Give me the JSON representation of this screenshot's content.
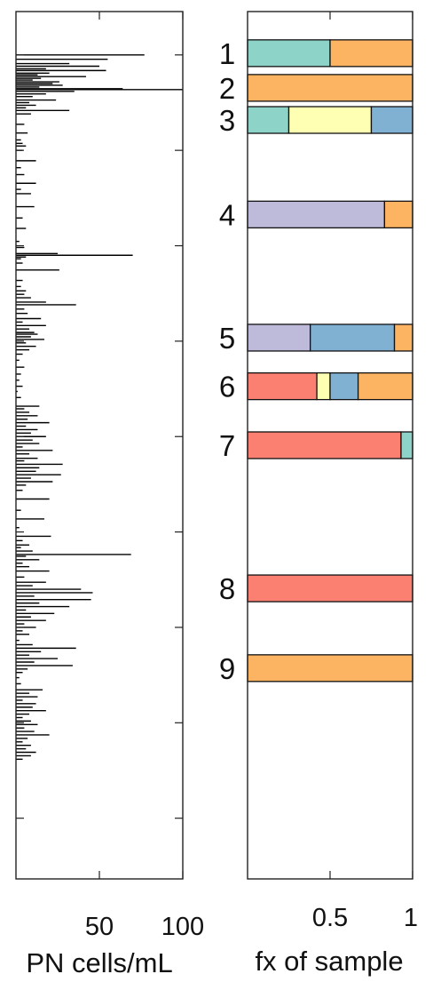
{
  "chart_data": [
    {
      "type": "bar",
      "orientation": "horizontal",
      "xlabel": "PN cells/mL",
      "x_ticks": [
        50,
        100
      ],
      "xlim": [
        0,
        100
      ],
      "ylim": [
        0,
        1
      ],
      "y_ticks": [
        0.05,
        0.16,
        0.27,
        0.38,
        0.49,
        0.6,
        0.71,
        0.82,
        0.93
      ],
      "grid": false,
      "bars": [
        {
          "pos": 0.05,
          "value": 77
        },
        {
          "pos": 0.055,
          "value": 55
        },
        {
          "pos": 0.06,
          "value": 32
        },
        {
          "pos": 0.063,
          "value": 50
        },
        {
          "pos": 0.066,
          "value": 18
        },
        {
          "pos": 0.068,
          "value": 54
        },
        {
          "pos": 0.071,
          "value": 20
        },
        {
          "pos": 0.073,
          "value": 13
        },
        {
          "pos": 0.075,
          "value": 42
        },
        {
          "pos": 0.077,
          "value": 15
        },
        {
          "pos": 0.079,
          "value": 10
        },
        {
          "pos": 0.081,
          "value": 26
        },
        {
          "pos": 0.083,
          "value": 22
        },
        {
          "pos": 0.085,
          "value": 28
        },
        {
          "pos": 0.087,
          "value": 14
        },
        {
          "pos": 0.089,
          "value": 64
        },
        {
          "pos": 0.09,
          "value": 100
        },
        {
          "pos": 0.092,
          "value": 35
        },
        {
          "pos": 0.095,
          "value": 18
        },
        {
          "pos": 0.098,
          "value": 10
        },
        {
          "pos": 0.102,
          "value": 24
        },
        {
          "pos": 0.105,
          "value": 8
        },
        {
          "pos": 0.108,
          "value": 12
        },
        {
          "pos": 0.111,
          "value": 6
        },
        {
          "pos": 0.114,
          "value": 32
        },
        {
          "pos": 0.118,
          "value": 9
        },
        {
          "pos": 0.13,
          "value": 5
        },
        {
          "pos": 0.14,
          "value": 7
        },
        {
          "pos": 0.148,
          "value": 3
        },
        {
          "pos": 0.152,
          "value": 4
        },
        {
          "pos": 0.155,
          "value": 6
        },
        {
          "pos": 0.16,
          "value": 4
        },
        {
          "pos": 0.172,
          "value": 12
        },
        {
          "pos": 0.18,
          "value": 3
        },
        {
          "pos": 0.188,
          "value": 5
        },
        {
          "pos": 0.198,
          "value": 12
        },
        {
          "pos": 0.205,
          "value": 3
        },
        {
          "pos": 0.21,
          "value": 9
        },
        {
          "pos": 0.225,
          "value": 11
        },
        {
          "pos": 0.238,
          "value": 4
        },
        {
          "pos": 0.25,
          "value": 6
        },
        {
          "pos": 0.265,
          "value": 2
        },
        {
          "pos": 0.272,
          "value": 5
        },
        {
          "pos": 0.279,
          "value": 25
        },
        {
          "pos": 0.281,
          "value": 70
        },
        {
          "pos": 0.283,
          "value": 6
        },
        {
          "pos": 0.285,
          "value": 3
        },
        {
          "pos": 0.29,
          "value": 4
        },
        {
          "pos": 0.298,
          "value": 26
        },
        {
          "pos": 0.31,
          "value": 4
        },
        {
          "pos": 0.317,
          "value": 3
        },
        {
          "pos": 0.322,
          "value": 6
        },
        {
          "pos": 0.326,
          "value": 5
        },
        {
          "pos": 0.33,
          "value": 9
        },
        {
          "pos": 0.335,
          "value": 18
        },
        {
          "pos": 0.338,
          "value": 36
        },
        {
          "pos": 0.343,
          "value": 5
        },
        {
          "pos": 0.348,
          "value": 7
        },
        {
          "pos": 0.354,
          "value": 15
        },
        {
          "pos": 0.358,
          "value": 4
        },
        {
          "pos": 0.362,
          "value": 18
        },
        {
          "pos": 0.366,
          "value": 8
        },
        {
          "pos": 0.37,
          "value": 11
        },
        {
          "pos": 0.372,
          "value": 13
        },
        {
          "pos": 0.375,
          "value": 9
        },
        {
          "pos": 0.378,
          "value": 17
        },
        {
          "pos": 0.382,
          "value": 6
        },
        {
          "pos": 0.386,
          "value": 12
        },
        {
          "pos": 0.39,
          "value": 8
        },
        {
          "pos": 0.395,
          "value": 4
        },
        {
          "pos": 0.402,
          "value": 2
        },
        {
          "pos": 0.41,
          "value": 5
        },
        {
          "pos": 0.418,
          "value": 3
        },
        {
          "pos": 0.425,
          "value": 2
        },
        {
          "pos": 0.432,
          "value": 4
        },
        {
          "pos": 0.438,
          "value": 1
        },
        {
          "pos": 0.445,
          "value": 3
        },
        {
          "pos": 0.455,
          "value": 14
        },
        {
          "pos": 0.458,
          "value": 5
        },
        {
          "pos": 0.462,
          "value": 8
        },
        {
          "pos": 0.466,
          "value": 13
        },
        {
          "pos": 0.47,
          "value": 7
        },
        {
          "pos": 0.474,
          "value": 20
        },
        {
          "pos": 0.478,
          "value": 6
        },
        {
          "pos": 0.482,
          "value": 13
        },
        {
          "pos": 0.486,
          "value": 9
        },
        {
          "pos": 0.49,
          "value": 18
        },
        {
          "pos": 0.494,
          "value": 10
        },
        {
          "pos": 0.498,
          "value": 14
        },
        {
          "pos": 0.502,
          "value": 4
        },
        {
          "pos": 0.506,
          "value": 22
        },
        {
          "pos": 0.51,
          "value": 8
        },
        {
          "pos": 0.515,
          "value": 13
        },
        {
          "pos": 0.518,
          "value": 5
        },
        {
          "pos": 0.522,
          "value": 28
        },
        {
          "pos": 0.526,
          "value": 14
        },
        {
          "pos": 0.53,
          "value": 12
        },
        {
          "pos": 0.534,
          "value": 27
        },
        {
          "pos": 0.538,
          "value": 9
        },
        {
          "pos": 0.542,
          "value": 22
        },
        {
          "pos": 0.546,
          "value": 6
        },
        {
          "pos": 0.552,
          "value": 4
        },
        {
          "pos": 0.562,
          "value": 20
        },
        {
          "pos": 0.575,
          "value": 3
        },
        {
          "pos": 0.585,
          "value": 17
        },
        {
          "pos": 0.595,
          "value": 2
        },
        {
          "pos": 0.605,
          "value": 21
        },
        {
          "pos": 0.61,
          "value": 4
        },
        {
          "pos": 0.615,
          "value": 8
        },
        {
          "pos": 0.618,
          "value": 3
        },
        {
          "pos": 0.622,
          "value": 10
        },
        {
          "pos": 0.626,
          "value": 69
        },
        {
          "pos": 0.628,
          "value": 6
        },
        {
          "pos": 0.632,
          "value": 14
        },
        {
          "pos": 0.636,
          "value": 4
        },
        {
          "pos": 0.64,
          "value": 8
        },
        {
          "pos": 0.645,
          "value": 20
        },
        {
          "pos": 0.652,
          "value": 5
        },
        {
          "pos": 0.658,
          "value": 18
        },
        {
          "pos": 0.662,
          "value": 10
        },
        {
          "pos": 0.666,
          "value": 39
        },
        {
          "pos": 0.67,
          "value": 46
        },
        {
          "pos": 0.674,
          "value": 11
        },
        {
          "pos": 0.678,
          "value": 45
        },
        {
          "pos": 0.682,
          "value": 14
        },
        {
          "pos": 0.686,
          "value": 32
        },
        {
          "pos": 0.69,
          "value": 6
        },
        {
          "pos": 0.694,
          "value": 23
        },
        {
          "pos": 0.698,
          "value": 9
        },
        {
          "pos": 0.702,
          "value": 18
        },
        {
          "pos": 0.706,
          "value": 5
        },
        {
          "pos": 0.71,
          "value": 12
        },
        {
          "pos": 0.714,
          "value": 4
        },
        {
          "pos": 0.718,
          "value": 8
        },
        {
          "pos": 0.725,
          "value": 2
        },
        {
          "pos": 0.73,
          "value": 10
        },
        {
          "pos": 0.734,
          "value": 36
        },
        {
          "pos": 0.738,
          "value": 15
        },
        {
          "pos": 0.742,
          "value": 8
        },
        {
          "pos": 0.746,
          "value": 25
        },
        {
          "pos": 0.75,
          "value": 11
        },
        {
          "pos": 0.754,
          "value": 34
        },
        {
          "pos": 0.758,
          "value": 7
        },
        {
          "pos": 0.762,
          "value": 4
        },
        {
          "pos": 0.768,
          "value": 2
        },
        {
          "pos": 0.775,
          "value": 3
        },
        {
          "pos": 0.782,
          "value": 16
        },
        {
          "pos": 0.786,
          "value": 8
        },
        {
          "pos": 0.79,
          "value": 13
        },
        {
          "pos": 0.794,
          "value": 4
        },
        {
          "pos": 0.798,
          "value": 12
        },
        {
          "pos": 0.802,
          "value": 10
        },
        {
          "pos": 0.806,
          "value": 18
        },
        {
          "pos": 0.81,
          "value": 8
        },
        {
          "pos": 0.814,
          "value": 4
        },
        {
          "pos": 0.818,
          "value": 9
        },
        {
          "pos": 0.822,
          "value": 13
        },
        {
          "pos": 0.826,
          "value": 5
        },
        {
          "pos": 0.83,
          "value": 11
        },
        {
          "pos": 0.834,
          "value": 20
        },
        {
          "pos": 0.838,
          "value": 7
        },
        {
          "pos": 0.842,
          "value": 4
        },
        {
          "pos": 0.846,
          "value": 9
        },
        {
          "pos": 0.85,
          "value": 6
        },
        {
          "pos": 0.854,
          "value": 12
        },
        {
          "pos": 0.858,
          "value": 9
        },
        {
          "pos": 0.862,
          "value": 4
        }
      ]
    },
    {
      "type": "bar",
      "orientation": "horizontal",
      "stacked": true,
      "xlabel": "fx of sample",
      "x_ticks": [
        0.5,
        1
      ],
      "x_tick_labels": [
        "0.5",
        "1"
      ],
      "xlim": [
        0,
        1
      ],
      "ylim": [
        0,
        1
      ],
      "legend": "none",
      "grid": false,
      "rows": [
        {
          "label": "1",
          "pos": 0.048,
          "segments": [
            {
              "value": 0.5,
              "color": "#8dd3c7"
            },
            {
              "value": 0.5,
              "color": "#fdb462"
            }
          ]
        },
        {
          "label": "2",
          "pos": 0.088,
          "segments": [
            {
              "value": 1.0,
              "color": "#fdb462"
            }
          ]
        },
        {
          "label": "3",
          "pos": 0.125,
          "segments": [
            {
              "value": 0.25,
              "color": "#8dd3c7"
            },
            {
              "value": 0.5,
              "color": "#ffffb3"
            },
            {
              "value": 0.25,
              "color": "#80b1d3"
            }
          ]
        },
        {
          "label": "4",
          "pos": 0.234,
          "segments": [
            {
              "value": 0.83,
              "color": "#bebada"
            },
            {
              "value": 0.17,
              "color": "#fdb462"
            }
          ]
        },
        {
          "label": "5",
          "pos": 0.376,
          "segments": [
            {
              "value": 0.38,
              "color": "#bebada"
            },
            {
              "value": 0.51,
              "color": "#80b1d3"
            },
            {
              "value": 0.11,
              "color": "#fdb462"
            }
          ]
        },
        {
          "label": "6",
          "pos": 0.432,
          "segments": [
            {
              "value": 0.42,
              "color": "#fb8072"
            },
            {
              "value": 0.08,
              "color": "#ffffb3"
            },
            {
              "value": 0.17,
              "color": "#80b1d3"
            },
            {
              "value": 0.33,
              "color": "#fdb462"
            }
          ]
        },
        {
          "label": "7",
          "pos": 0.5,
          "segments": [
            {
              "value": 0.93,
              "color": "#fb8072"
            },
            {
              "value": 0.07,
              "color": "#8dd3c7"
            }
          ]
        },
        {
          "label": "8",
          "pos": 0.665,
          "segments": [
            {
              "value": 1.0,
              "color": "#fb8072"
            }
          ]
        },
        {
          "label": "9",
          "pos": 0.757,
          "segments": [
            {
              "value": 1.0,
              "color": "#fdb462"
            }
          ]
        }
      ]
    }
  ]
}
